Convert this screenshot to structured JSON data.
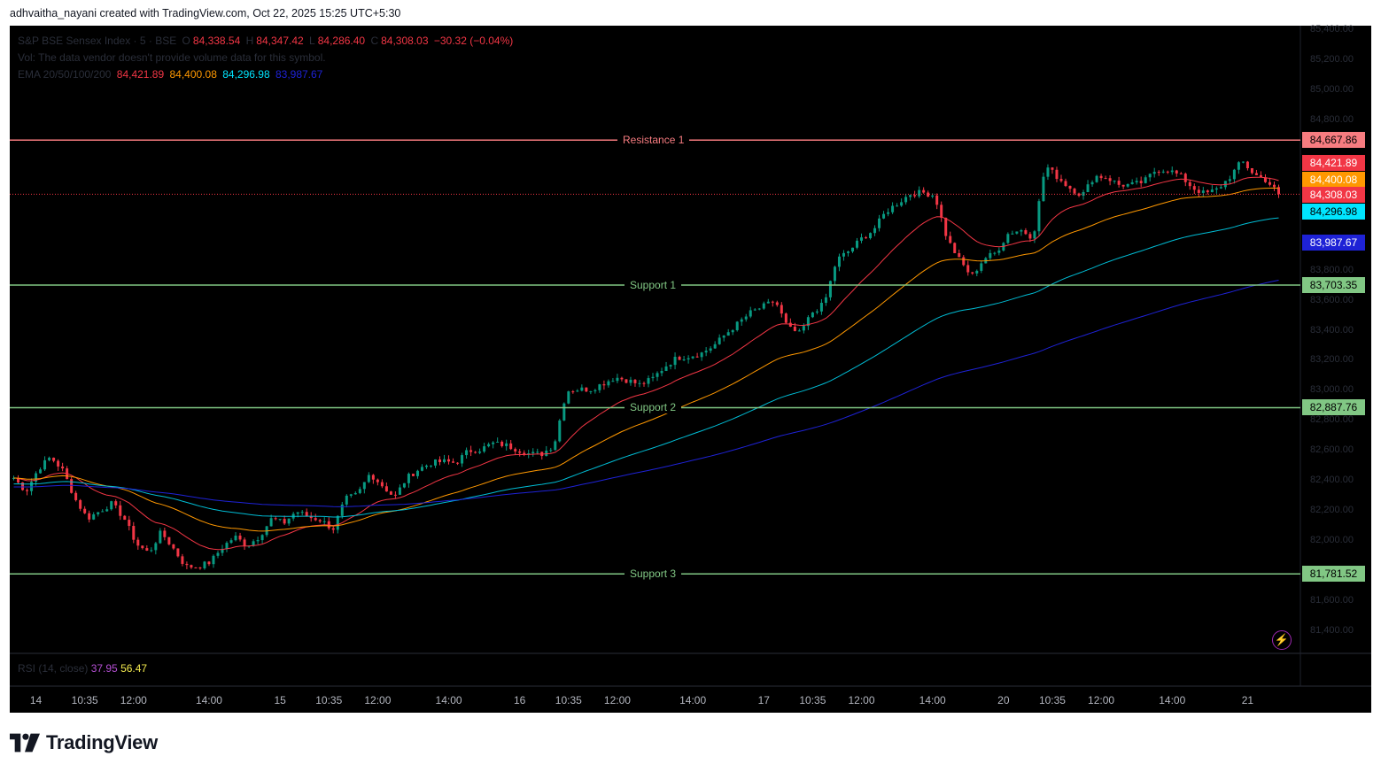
{
  "header": {
    "attribution": "adhvaitha_nayani created with TradingView.com, Oct 22, 2025 15:25 UTC+5:30"
  },
  "legend": {
    "symbol": "S&P BSE Sensex Index · 5 · BSE",
    "o_label": "O",
    "o": "84,338.54",
    "h_label": "H",
    "h": "84,347.42",
    "l_label": "L",
    "l": "84,286.40",
    "c_label": "C",
    "c": "84,308.03",
    "change": "−30.32 (−0.04%)",
    "volume_note": "Vol: The data vendor doesn't provide volume data for this symbol.",
    "ema_label": "EMA 20/50/100/200",
    "ema20": "84,421.89",
    "ema50": "84,400.08",
    "ema100": "84,296.98",
    "ema200": "83,987.67"
  },
  "rsi": {
    "label": "RSI (14, close)",
    "v1": "37.95",
    "v2": "56.47",
    "v1_color": "#b44fd3",
    "v2_color": "#f2e94e"
  },
  "colors": {
    "up": "#089981",
    "down": "#f23645",
    "ema20": "#f23645",
    "ema50": "#ff9800",
    "ema100": "#00bcd4",
    "ema200": "#1e22d6",
    "resistance": "#f77c80",
    "support": "#81c784"
  },
  "levels": [
    {
      "label": "Resistance 1",
      "value": 84667.86,
      "display": "84,667.86",
      "kind": "resistance"
    },
    {
      "label": "Support 1",
      "value": 83703.35,
      "display": "83,703.35",
      "kind": "support"
    },
    {
      "label": "Support 2",
      "value": 82887.76,
      "display": "82,887.76",
      "kind": "support"
    },
    {
      "label": "Support 3",
      "value": 81781.52,
      "display": "81,781.52",
      "kind": "support"
    }
  ],
  "price_tags": [
    {
      "value": 84421.89,
      "display": "84,421.89",
      "color": "#f23645",
      "text": "#ffffff"
    },
    {
      "value": 84400.08,
      "display": "84,400.08",
      "color": "#ff9800",
      "text": "#ffffff"
    },
    {
      "value": 84308.03,
      "display": "84,308.03",
      "color": "#f23645",
      "text": "#ffffff"
    },
    {
      "value": 84296.98,
      "display": "84,296.98",
      "color": "#00e5ff",
      "text": "#000000"
    },
    {
      "value": 83987.67,
      "display": "83,987.67",
      "color": "#1e22d6",
      "text": "#ffffff"
    }
  ],
  "chart_data": {
    "type": "candlestick",
    "title": "S&P BSE Sensex Index · 5 · BSE",
    "ylim": [
      81300,
      85400
    ],
    "y_ticks": [
      "85,400.00",
      "85,200.00",
      "85,000.00",
      "84,800.00",
      "83,800.00",
      "83,600.00",
      "83,400.00",
      "83,200.00",
      "83,000.00",
      "82,800.00",
      "82,600.00",
      "82,400.00",
      "82,200.00",
      "82,000.00",
      "81,600.00",
      "81,400.00"
    ],
    "y_tick_values": [
      85400,
      85200,
      85000,
      84800,
      83800,
      83600,
      83400,
      83200,
      83000,
      82800,
      82600,
      82400,
      82200,
      82000,
      81600,
      81400
    ],
    "x_ticks": [
      "14",
      "10:35",
      "12:00",
      "14:00",
      "15",
      "10:35",
      "12:00",
      "14:00",
      "16",
      "10:35",
      "12:00",
      "14:00",
      "17",
      "10:35",
      "12:00",
      "14:00",
      "20",
      "10:35",
      "12:00",
      "14:00",
      "21"
    ],
    "x_tick_index": [
      4,
      12,
      20,
      32,
      44,
      52,
      60,
      72,
      84,
      92,
      100,
      112,
      124,
      132,
      140,
      152,
      164,
      172,
      180,
      192,
      204
    ],
    "close_path": [
      82420,
      82330,
      82480,
      82560,
      82470,
      82280,
      82150,
      82200,
      82250,
      82150,
      81980,
      81920,
      82060,
      81950,
      81830,
      81830,
      81860,
      81960,
      82030,
      81970,
      82030,
      82150,
      82120,
      82200,
      82160,
      82140,
      82080,
      82280,
      82310,
      82450,
      82370,
      82290,
      82420,
      82480,
      82520,
      82530,
      82520,
      82600,
      82610,
      82650,
      82640,
      82610,
      82580,
      82580,
      82640,
      83000,
      83010,
      83010,
      83050,
      83090,
      83070,
      83040,
      83080,
      83160,
      83220,
      83230,
      83250,
      83300,
      83380,
      83450,
      83520,
      83560,
      83600,
      83420,
      83380,
      83520,
      83580,
      83870,
      83930,
      84010,
      84070,
      84190,
      84250,
      84310,
      84320,
      84300,
      84010,
      83870,
      83760,
      83880,
      83920,
      84050,
      84070,
      84020,
      84500,
      84420,
      84350,
      84300,
      84430,
      84420,
      84370,
      84370,
      84390,
      84470,
      84470,
      84430,
      84350,
      84310,
      84340,
      84420,
      84530,
      84440,
      84400,
      84310
    ],
    "ema20": "exponential moving average (20) of closes",
    "ema50": "exponential moving average (50) of closes",
    "ema100": "exponential moving average (100) of closes",
    "ema200": "exponential moving average (200) of closes",
    "last_close": 84308.03
  }
}
